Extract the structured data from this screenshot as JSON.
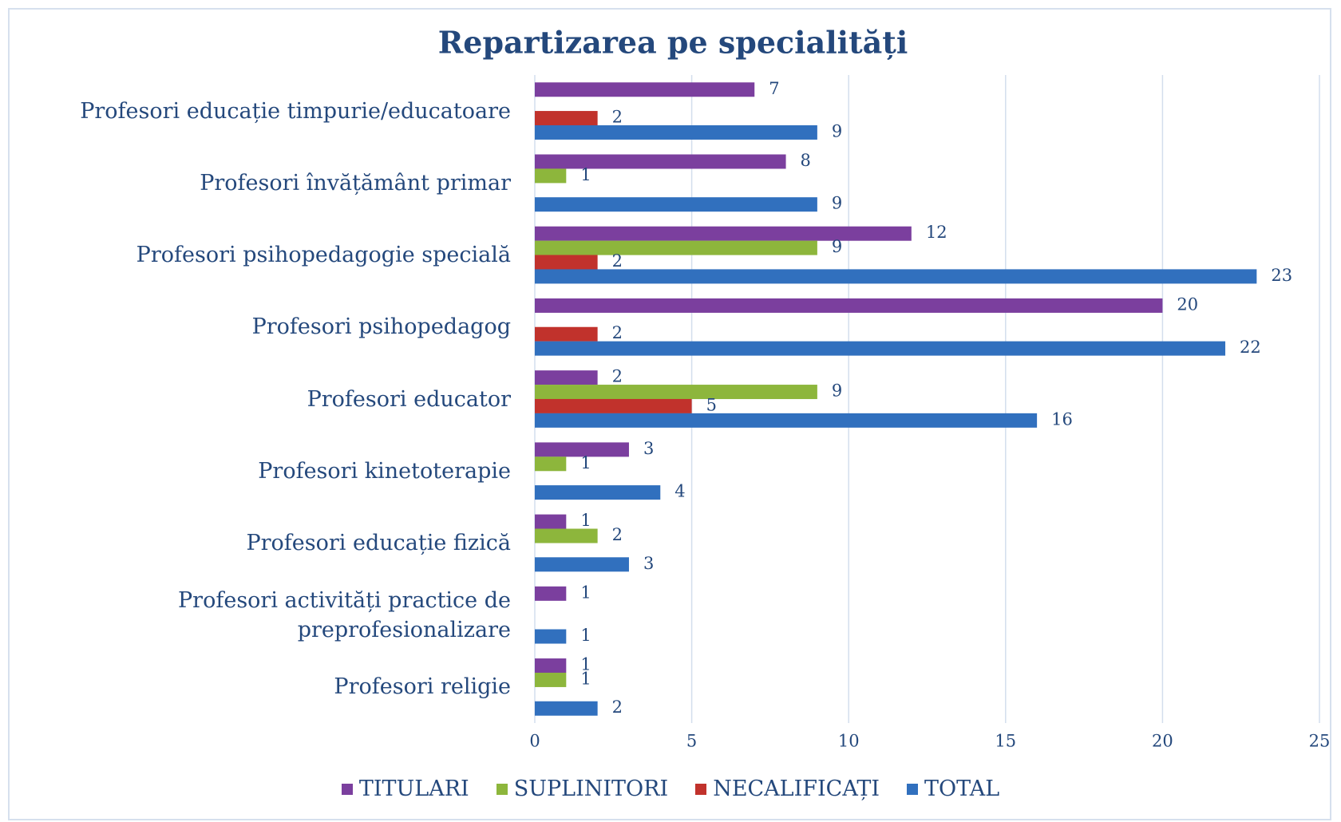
{
  "chart_data": {
    "type": "bar",
    "orientation": "horizontal",
    "title": "Repartizarea pe specialități",
    "categories": [
      "Profesori educație timpurie/educatoare",
      "Profesori învățământ primar",
      "Profesori psihopedagogie specială",
      "Profesori psihopedagog",
      "Profesori educator",
      "Profesori kinetoterapie",
      "Profesori educație fizică",
      "Profesori activități practice de preprofesionalizare",
      "Profesori religie"
    ],
    "series": [
      {
        "name": "TITULARI",
        "color": "#7b3f9e",
        "values": [
          7,
          8,
          12,
          20,
          2,
          3,
          1,
          1,
          1
        ]
      },
      {
        "name": "SUPLINITORI",
        "color": "#8db63c",
        "values": [
          null,
          1,
          9,
          null,
          9,
          1,
          2,
          null,
          1
        ]
      },
      {
        "name": "NECALIFICAȚI",
        "color": "#c1322c",
        "values": [
          2,
          null,
          2,
          2,
          5,
          null,
          null,
          null,
          null
        ]
      },
      {
        "name": "TOTAL",
        "color": "#3170be",
        "values": [
          9,
          9,
          23,
          22,
          16,
          4,
          3,
          1,
          2
        ]
      }
    ],
    "xlim": [
      0,
      25
    ],
    "xticks": [
      0,
      5,
      10,
      15,
      20,
      25
    ],
    "grid": true,
    "legend": "bottom"
  }
}
